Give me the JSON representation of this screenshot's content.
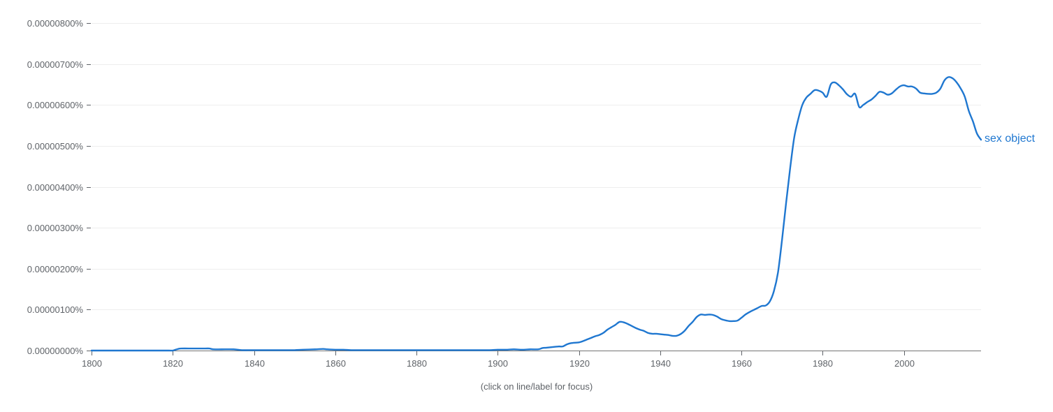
{
  "chart_data": {
    "type": "line",
    "title": "",
    "xlabel": "",
    "ylabel": "",
    "xlim": [
      1800,
      2019
    ],
    "ylim": [
      0,
      8e-06
    ],
    "x_ticks": [
      1800,
      1820,
      1840,
      1860,
      1880,
      1900,
      1920,
      1940,
      1960,
      1980,
      2000
    ],
    "x_tick_labels": [
      "1800",
      "1820",
      "1840",
      "1860",
      "1880",
      "1900",
      "1920",
      "1940",
      "1960",
      "1980",
      "2000"
    ],
    "y_ticks": [
      0,
      1e-06,
      2e-06,
      3e-06,
      4e-06,
      5e-06,
      6e-06,
      7e-06,
      8e-06
    ],
    "y_tick_labels": [
      "0.00000000%",
      "0.00000100%",
      "0.00000200%",
      "0.00000300%",
      "0.00000400%",
      "0.00000500%",
      "0.00000600%",
      "0.00000700%",
      "0.00000800%"
    ],
    "grid": true,
    "legend": "end-of-line label",
    "series": [
      {
        "name": "sex object",
        "color": "#1f77d0",
        "x": [
          1800,
          1805,
          1810,
          1815,
          1819,
          1820,
          1821,
          1822,
          1825,
          1828,
          1829,
          1830,
          1832,
          1835,
          1837,
          1840,
          1845,
          1848,
          1850,
          1852,
          1855,
          1857,
          1858,
          1860,
          1862,
          1864,
          1866,
          1868,
          1870,
          1875,
          1880,
          1885,
          1890,
          1895,
          1898,
          1900,
          1902,
          1904,
          1906,
          1908,
          1910,
          1911,
          1912,
          1914,
          1915,
          1916,
          1917,
          1918,
          1920,
          1921,
          1922,
          1923,
          1924,
          1925,
          1926,
          1927,
          1928,
          1929,
          1930,
          1931,
          1932,
          1933,
          1934,
          1935,
          1936,
          1937,
          1938,
          1939,
          1940,
          1941,
          1942,
          1943,
          1944,
          1945,
          1946,
          1947,
          1948,
          1949,
          1950,
          1951,
          1952,
          1953,
          1954,
          1955,
          1956,
          1957,
          1958,
          1959,
          1960,
          1961,
          1962,
          1963,
          1964,
          1965,
          1966,
          1967,
          1968,
          1969,
          1970,
          1971,
          1972,
          1973,
          1974,
          1975,
          1976,
          1977,
          1978,
          1979,
          1980,
          1981,
          1982,
          1983,
          1984,
          1985,
          1986,
          1987,
          1988,
          1989,
          1990,
          1991,
          1992,
          1993,
          1994,
          1995,
          1996,
          1997,
          1998,
          1999,
          2000,
          2001,
          2002,
          2003,
          2004,
          2005,
          2006,
          2007,
          2008,
          2009,
          2010,
          2011,
          2012,
          2013,
          2014,
          2015,
          2016,
          2017,
          2018,
          2019
        ],
        "values": [
          0,
          0,
          0,
          0,
          0,
          0,
          3e-08,
          5e-08,
          5e-08,
          5e-08,
          5e-08,
          3e-08,
          3e-08,
          3e-08,
          1e-08,
          1e-08,
          1e-08,
          1e-08,
          1e-08,
          2e-08,
          3e-08,
          4e-08,
          3e-08,
          2e-08,
          2e-08,
          1e-08,
          1e-08,
          1e-08,
          1e-08,
          1e-08,
          1e-08,
          1e-08,
          1e-08,
          1e-08,
          1e-08,
          2e-08,
          2e-08,
          3e-08,
          2e-08,
          3e-08,
          3e-08,
          6e-08,
          7e-08,
          9e-08,
          1e-07,
          1e-07,
          1.5e-07,
          1.8e-07,
          2e-07,
          2.3e-07,
          2.7e-07,
          3.1e-07,
          3.5e-07,
          3.8e-07,
          4.3e-07,
          5.1e-07,
          5.7e-07,
          6.3e-07,
          7e-07,
          6.9e-07,
          6.5e-07,
          6e-07,
          5.5e-07,
          5.1e-07,
          4.8e-07,
          4.3e-07,
          4.1e-07,
          4.1e-07,
          4e-07,
          3.9e-07,
          3.8e-07,
          3.6e-07,
          3.6e-07,
          4e-07,
          4.8e-07,
          6e-07,
          7e-07,
          8.2e-07,
          8.8e-07,
          8.7e-07,
          8.8e-07,
          8.7e-07,
          8.3e-07,
          7.7e-07,
          7.4e-07,
          7.2e-07,
          7.2e-07,
          7.3e-07,
          8e-07,
          8.8e-07,
          9.4e-07,
          9.9e-07,
          1.04e-06,
          1.09e-06,
          1.1e-06,
          1.2e-06,
          1.45e-06,
          1.9e-06,
          2.7e-06,
          3.6e-06,
          4.45e-06,
          5.2e-06,
          5.65e-06,
          6e-06,
          6.18e-06,
          6.27e-06,
          6.36e-06,
          6.35e-06,
          6.3e-06,
          6.2e-06,
          6.5e-06,
          6.55e-06,
          6.48e-06,
          6.38e-06,
          6.26e-06,
          6.2e-06,
          6.27e-06,
          5.95e-06,
          6e-06,
          6.07e-06,
          6.13e-06,
          6.22e-06,
          6.32e-06,
          6.3e-06,
          6.25e-06,
          6.28e-06,
          6.37e-06,
          6.45e-06,
          6.48e-06,
          6.45e-06,
          6.45e-06,
          6.4e-06,
          6.3e-06,
          6.28e-06,
          6.27e-06,
          6.27e-06,
          6.3e-06,
          6.4e-06,
          6.6e-06,
          6.68e-06,
          6.65e-06,
          6.55e-06,
          6.4e-06,
          6.2e-06,
          5.85e-06,
          5.6e-06,
          5.3e-06,
          5.15e-06
        ]
      }
    ]
  },
  "labels": {
    "series_end_label": "sex object",
    "footer_hint": "(click on line/label for focus)"
  }
}
